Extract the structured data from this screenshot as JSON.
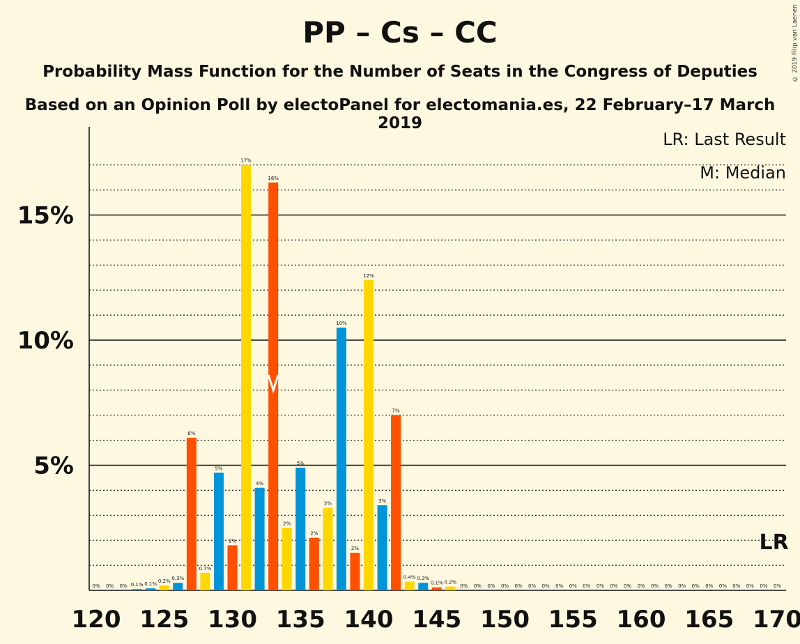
{
  "title": "PP – Cs – CC",
  "subtitle": "Probability Mass Function for the Number of Seats in the Congress of Deputies",
  "subtitle2": "Based on an Opinion Poll by electoPanel for electomania.es, 22 February–17 March 2019",
  "copyright": "© 2019 Filip van Laenen",
  "legend": {
    "last_result": "LR: Last Result",
    "median": "M: Median"
  },
  "markers": {
    "lr_label": "LR",
    "median_seat": 133,
    "last_result_seat": 170
  },
  "colors": {
    "background": "#FFF8E1",
    "pp": "#0094D8",
    "cs": "#FF4F00",
    "cc": "#FFD700"
  },
  "chart_data": {
    "type": "bar",
    "xlabel": "",
    "ylabel": "",
    "x_ticks": [
      120,
      125,
      130,
      135,
      140,
      145,
      150,
      155,
      160,
      165,
      170
    ],
    "y_ticks": [
      "5%",
      "10%",
      "15%"
    ],
    "y_tick_values": [
      5,
      10,
      15
    ],
    "ylim": [
      0,
      18.5
    ],
    "grid": true,
    "seats": [
      120,
      121,
      122,
      123,
      124,
      125,
      126,
      127,
      128,
      129,
      130,
      131,
      132,
      133,
      134,
      135,
      136,
      137,
      138,
      139,
      140,
      141,
      142,
      143,
      144,
      145,
      146,
      147,
      148,
      149,
      150,
      151,
      152,
      153,
      154,
      155,
      156,
      157,
      158,
      159,
      160,
      161,
      162,
      163,
      164,
      165,
      166,
      167,
      168,
      169,
      170
    ],
    "values": [
      0,
      0,
      0,
      0.05,
      0.08,
      0.2,
      0.3,
      6.1,
      0.7,
      4.7,
      1.8,
      17,
      4.1,
      16.3,
      2.5,
      4.9,
      2.1,
      3.3,
      10.5,
      1.5,
      12.4,
      3.4,
      7.0,
      0.35,
      0.3,
      0.12,
      0.15,
      0,
      0,
      0,
      0,
      0,
      0,
      0,
      0,
      0,
      0,
      0,
      0,
      0,
      0,
      0,
      0,
      0,
      0,
      0,
      0,
      0,
      0,
      0,
      0
    ],
    "labels": [
      "0%",
      "0%",
      "0%",
      "0.1%",
      "0.1%",
      "0.2%",
      "0.3%",
      "6%",
      "0.7%",
      "5%",
      "2%",
      "17%",
      "4%",
      "16%",
      "2%",
      "5%",
      "2%",
      "3%",
      "10%",
      "2%",
      "12%",
      "3%",
      "7%",
      "0.4%",
      "0.3%",
      "0.1%",
      "0.2%",
      "0%",
      "0%",
      "0%",
      "0%",
      "0%",
      "0%",
      "0%",
      "0%",
      "0%",
      "0%",
      "0%",
      "0%",
      "0%",
      "0%",
      "0%",
      "0%",
      "0%",
      "0%",
      "0%",
      "0%",
      "0%",
      "0%",
      "0%",
      "0%"
    ],
    "color_keys": [
      "pp",
      "cs",
      "cc",
      "pp",
      "pp",
      "cc",
      "pp",
      "cs",
      "cc",
      "pp",
      "cs",
      "cc",
      "pp",
      "cs",
      "cc",
      "pp",
      "cs",
      "cc",
      "pp",
      "cs",
      "cc",
      "pp",
      "cs",
      "cc",
      "pp",
      "cs",
      "cc",
      "pp",
      "cs",
      "cc",
      "pp",
      "cs",
      "cc",
      "pp",
      "cs",
      "cc",
      "pp",
      "cs",
      "cc",
      "pp",
      "cs",
      "cc",
      "pp",
      "cs",
      "cc",
      "pp",
      "cs",
      "cc",
      "pp",
      "cs",
      "cc"
    ]
  }
}
